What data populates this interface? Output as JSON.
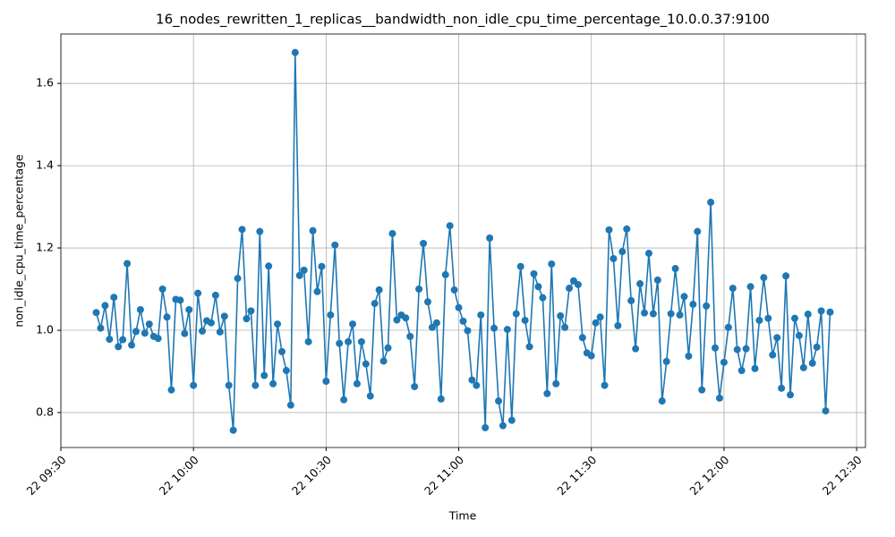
{
  "chart_data": {
    "type": "line",
    "title": "16_nodes_rewritten_1_replicas__bandwidth_non_idle_cpu_time_percentage_10.0.0.37:9100",
    "x_label": "Time",
    "y_label": "non_idle_cpu_time_percentage",
    "x": [
      "22 09:38",
      "22 09:39",
      "22 09:40",
      "22 09:41",
      "22 09:42",
      "22 09:43",
      "22 09:44",
      "22 09:45",
      "22 09:46",
      "22 09:47",
      "22 09:48",
      "22 09:49",
      "22 09:50",
      "22 09:51",
      "22 09:52",
      "22 09:53",
      "22 09:54",
      "22 09:55",
      "22 09:56",
      "22 09:57",
      "22 09:58",
      "22 09:59",
      "22 10:00",
      "22 10:01",
      "22 10:02",
      "22 10:03",
      "22 10:04",
      "22 10:05",
      "22 10:06",
      "22 10:07",
      "22 10:08",
      "22 10:09",
      "22 10:10",
      "22 10:11",
      "22 10:12",
      "22 10:13",
      "22 10:14",
      "22 10:15",
      "22 10:16",
      "22 10:17",
      "22 10:18",
      "22 10:19",
      "22 10:20",
      "22 10:21",
      "22 10:22",
      "22 10:23",
      "22 10:24",
      "22 10:25",
      "22 10:26",
      "22 10:27",
      "22 10:28",
      "22 10:29",
      "22 10:30",
      "22 10:31",
      "22 10:32",
      "22 10:33",
      "22 10:34",
      "22 10:35",
      "22 10:36",
      "22 10:37",
      "22 10:38",
      "22 10:39",
      "22 10:40",
      "22 10:41",
      "22 10:42",
      "22 10:43",
      "22 10:44",
      "22 10:45",
      "22 10:46",
      "22 10:47",
      "22 10:48",
      "22 10:49",
      "22 10:50",
      "22 10:51",
      "22 10:52",
      "22 10:53",
      "22 10:54",
      "22 10:55",
      "22 10:56",
      "22 10:57",
      "22 10:58",
      "22 10:59",
      "22 11:00",
      "22 11:01",
      "22 11:02",
      "22 11:03",
      "22 11:04",
      "22 11:05",
      "22 11:06",
      "22 11:07",
      "22 11:08",
      "22 11:09",
      "22 11:10",
      "22 11:11",
      "22 11:12",
      "22 11:13",
      "22 11:14",
      "22 11:15",
      "22 11:16",
      "22 11:17",
      "22 11:18",
      "22 11:19",
      "22 11:20",
      "22 11:21",
      "22 11:22",
      "22 11:23",
      "22 11:24",
      "22 11:25",
      "22 11:26",
      "22 11:27",
      "22 11:28",
      "22 11:29",
      "22 11:30",
      "22 11:31",
      "22 11:32",
      "22 11:33",
      "22 11:34",
      "22 11:35",
      "22 11:36",
      "22 11:37",
      "22 11:38",
      "22 11:39",
      "22 11:40",
      "22 11:41",
      "22 11:42",
      "22 11:43",
      "22 11:44",
      "22 11:45",
      "22 11:46",
      "22 11:47",
      "22 11:48",
      "22 11:49",
      "22 11:50",
      "22 11:51",
      "22 11:52",
      "22 11:53",
      "22 11:54",
      "22 11:55",
      "22 11:56",
      "22 11:57",
      "22 11:58",
      "22 11:59",
      "22 12:00",
      "22 12:01",
      "22 12:02",
      "22 12:03",
      "22 12:04",
      "22 12:05",
      "22 12:06",
      "22 12:07",
      "22 12:08",
      "22 12:09",
      "22 12:10",
      "22 12:11",
      "22 12:12",
      "22 12:13",
      "22 12:14",
      "22 12:15",
      "22 12:16",
      "22 12:17",
      "22 12:18",
      "22 12:19",
      "22 12:20",
      "22 12:21",
      "22 12:22",
      "22 12:23",
      "22 12:24"
    ],
    "series": [
      {
        "color": "#1f77b4",
        "values": [
          1.043,
          1.005,
          1.06,
          0.978,
          1.08,
          0.96,
          0.977,
          1.162,
          0.964,
          0.997,
          1.05,
          0.993,
          1.015,
          0.985,
          0.98,
          1.1,
          1.032,
          0.855,
          1.075,
          1.073,
          0.992,
          1.05,
          0.866,
          1.09,
          0.998,
          1.023,
          1.018,
          1.085,
          0.996,
          1.034,
          0.866,
          0.757,
          1.126,
          1.245,
          1.028,
          1.047,
          0.866,
          1.24,
          0.89,
          1.156,
          0.87,
          1.015,
          0.948,
          0.902,
          0.818,
          1.675,
          1.133,
          1.146,
          0.972,
          1.242,
          1.094,
          1.155,
          0.876,
          1.037,
          1.207,
          0.968,
          0.831,
          0.972,
          1.015,
          0.87,
          0.972,
          0.918,
          0.84,
          1.065,
          1.098,
          0.925,
          0.957,
          1.235,
          1.025,
          1.037,
          1.03,
          0.985,
          0.863,
          1.1,
          1.211,
          1.069,
          1.007,
          1.018,
          0.833,
          1.135,
          1.254,
          1.098,
          1.055,
          1.022,
          0.999,
          0.879,
          0.866,
          1.037,
          0.763,
          1.224,
          1.005,
          0.828,
          0.768,
          1.002,
          0.781,
          1.04,
          1.155,
          1.024,
          0.96,
          1.137,
          1.106,
          1.079,
          0.846,
          1.161,
          0.87,
          1.035,
          1.007,
          1.102,
          1.12,
          1.111,
          0.982,
          0.945,
          0.938,
          1.018,
          1.032,
          0.866,
          1.244,
          1.174,
          1.011,
          1.191,
          1.246,
          1.072,
          0.955,
          1.113,
          1.042,
          1.187,
          1.04,
          1.122,
          0.828,
          0.924,
          1.04,
          1.15,
          1.037,
          1.082,
          0.937,
          1.063,
          1.24,
          0.855,
          1.059,
          1.311,
          0.957,
          0.835,
          0.922,
          1.007,
          1.102,
          0.953,
          0.902,
          0.955,
          1.106,
          0.907,
          1.024,
          1.128,
          1.029,
          0.94,
          0.982,
          0.859,
          1.132,
          0.843,
          1.029,
          0.987,
          0.909,
          1.039,
          0.92,
          0.959,
          1.047,
          0.804,
          1.044
        ]
      }
    ],
    "xlim": [
      "22 09:30",
      "22 12:32"
    ],
    "xticks": [
      "22 09:30",
      "22 10:00",
      "22 10:30",
      "22 11:00",
      "22 11:30",
      "22 12:00",
      "22 12:30"
    ],
    "ylim": [
      0.715,
      1.72
    ],
    "yticks": [
      {
        "value": 0.8,
        "label": "0.8"
      },
      {
        "value": 1.0,
        "label": "1.0"
      },
      {
        "value": 1.2,
        "label": "1.2"
      },
      {
        "value": 1.4,
        "label": "1.4"
      },
      {
        "value": 1.6,
        "label": "1.6"
      }
    ],
    "grid": true,
    "markers": true
  }
}
